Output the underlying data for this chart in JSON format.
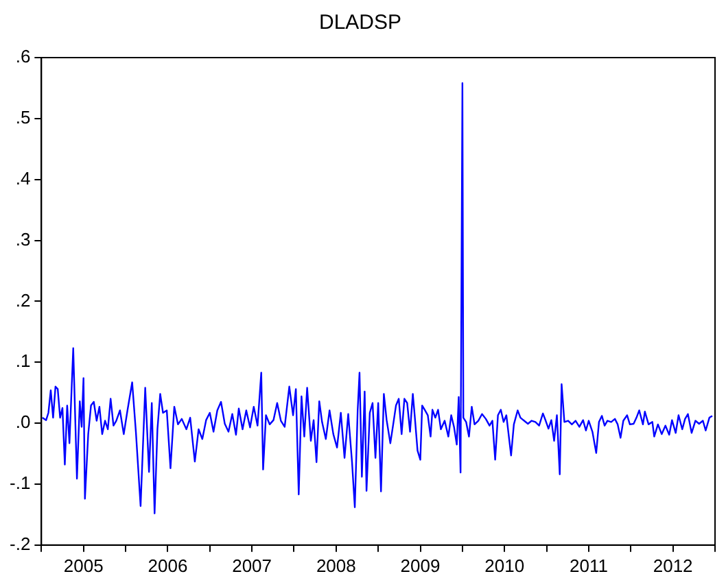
{
  "chart_data": {
    "type": "line",
    "title": "DLADSP",
    "color": "#0000ff",
    "xlim": [
      2005,
      2013
    ],
    "xticks": [
      {
        "value": 2005,
        "label": null
      },
      {
        "value": 2005.5,
        "label": "2005"
      },
      {
        "value": 2006,
        "label": null
      },
      {
        "value": 2006.5,
        "label": "2006"
      },
      {
        "value": 2007,
        "label": null
      },
      {
        "value": 2007.5,
        "label": "2007"
      },
      {
        "value": 2008,
        "label": null
      },
      {
        "value": 2008.5,
        "label": "2008"
      },
      {
        "value": 2009,
        "label": null
      },
      {
        "value": 2009.5,
        "label": "2009"
      },
      {
        "value": 2010,
        "label": null
      },
      {
        "value": 2010.5,
        "label": "2010"
      },
      {
        "value": 2011,
        "label": null
      },
      {
        "value": 2011.5,
        "label": "2011"
      },
      {
        "value": 2012,
        "label": null
      },
      {
        "value": 2012.5,
        "label": "2012"
      },
      {
        "value": 2013,
        "label": null
      }
    ],
    "ylim": [
      -0.2,
      0.6
    ],
    "yticks": [
      {
        "value": -0.2,
        "label": "-.2"
      },
      {
        "value": -0.1,
        "label": "-.1"
      },
      {
        "value": 0,
        "label": ".0"
      },
      {
        "value": 0.1,
        "label": ".1"
      },
      {
        "value": 0.2,
        "label": ".2"
      },
      {
        "value": 0.3,
        "label": ".3"
      },
      {
        "value": 0.4,
        "label": ".4"
      },
      {
        "value": 0.5,
        "label": ".5"
      },
      {
        "value": 0.6,
        "label": ".6"
      }
    ],
    "x": [
      2005.011,
      2005.056,
      2005.083,
      2005.111,
      2005.139,
      2005.167,
      2005.194,
      2005.222,
      2005.25,
      2005.278,
      2005.306,
      2005.333,
      2005.378,
      2005.422,
      2005.456,
      2005.478,
      2005.5,
      2005.517,
      2005.556,
      2005.589,
      2005.622,
      2005.656,
      2005.689,
      2005.722,
      2005.756,
      2005.789,
      2005.822,
      2005.856,
      2005.889,
      2005.933,
      2005.978,
      2006.022,
      2006.078,
      2006.122,
      2006.178,
      2006.233,
      2006.278,
      2006.311,
      2006.344,
      2006.378,
      2006.411,
      2006.444,
      2006.489,
      2006.533,
      2006.578,
      2006.622,
      2006.667,
      2006.722,
      2006.767,
      2006.822,
      2006.867,
      2006.911,
      2006.956,
      2007.0,
      2007.044,
      2007.089,
      2007.133,
      2007.178,
      2007.222,
      2007.267,
      2007.311,
      2007.344,
      2007.389,
      2007.433,
      2007.478,
      2007.522,
      2007.567,
      2007.611,
      2007.633,
      2007.667,
      2007.711,
      2007.756,
      2007.8,
      2007.844,
      2007.889,
      2007.944,
      2007.989,
      2008.022,
      2008.056,
      2008.089,
      2008.122,
      2008.156,
      2008.2,
      2008.233,
      2008.267,
      2008.3,
      2008.333,
      2008.378,
      2008.422,
      2008.467,
      2008.511,
      2008.556,
      2008.6,
      2008.644,
      2008.689,
      2008.722,
      2008.756,
      2008.778,
      2008.806,
      2008.839,
      2008.861,
      2008.9,
      2008.933,
      2008.967,
      2009.0,
      2009.033,
      2009.067,
      2009.1,
      2009.144,
      2009.178,
      2009.211,
      2009.244,
      2009.278,
      2009.311,
      2009.344,
      2009.378,
      2009.411,
      2009.433,
      2009.467,
      2009.5,
      2009.522,
      2009.556,
      2009.589,
      2009.622,
      2009.644,
      2009.678,
      2009.711,
      2009.744,
      2009.789,
      2009.833,
      2009.867,
      2009.9,
      2009.933,
      2009.956,
      2009.978,
      2010.0,
      2010.011,
      2010.044,
      2010.078,
      2010.111,
      2010.144,
      2010.189,
      2010.233,
      2010.278,
      2010.322,
      2010.356,
      2010.389,
      2010.422,
      2010.456,
      2010.489,
      2010.522,
      2010.578,
      2010.611,
      2010.656,
      2010.689,
      2010.733,
      2010.778,
      2010.822,
      2010.867,
      2010.911,
      2010.956,
      2010.989,
      2011.022,
      2011.056,
      2011.089,
      2011.122,
      2011.156,
      2011.178,
      2011.211,
      2011.256,
      2011.3,
      2011.344,
      2011.389,
      2011.433,
      2011.467,
      2011.5,
      2011.544,
      2011.589,
      2011.622,
      2011.656,
      2011.689,
      2011.722,
      2011.767,
      2011.811,
      2011.844,
      2011.878,
      2011.911,
      2011.956,
      2011.989,
      2012.033,
      2012.067,
      2012.1,
      2012.144,
      2012.167,
      2012.211,
      2012.256,
      2012.278,
      2012.322,
      2012.367,
      2012.411,
      2012.456,
      2012.489,
      2012.533,
      2012.567,
      2012.611,
      2012.644,
      2012.678,
      2012.722,
      2012.767,
      2012.811,
      2012.856,
      2012.889,
      2012.933,
      2012.967
    ],
    "values": [
      0.009,
      0.005,
      0.017,
      0.054,
      0.009,
      0.06,
      0.056,
      0.009,
      0.025,
      -0.068,
      0.029,
      -0.033,
      0.123,
      -0.091,
      0.036,
      -0.006,
      0.074,
      -0.124,
      -0.018,
      0.029,
      0.035,
      0.004,
      0.027,
      -0.018,
      0.004,
      -0.01,
      0.04,
      -0.004,
      0.004,
      0.021,
      -0.018,
      0.021,
      0.067,
      -0.014,
      -0.136,
      0.058,
      -0.08,
      0.033,
      -0.148,
      -0.01,
      0.048,
      0.017,
      0.021,
      -0.074,
      0.027,
      -0.002,
      0.007,
      -0.01,
      0.009,
      -0.063,
      -0.01,
      -0.026,
      0.005,
      0.017,
      -0.014,
      0.021,
      0.035,
      -0.001,
      -0.014,
      0.015,
      -0.019,
      0.024,
      -0.01,
      0.021,
      -0.007,
      0.027,
      -0.004,
      0.083,
      -0.076,
      0.013,
      -0.002,
      0.005,
      0.033,
      0.004,
      -0.006,
      0.06,
      0.013,
      0.056,
      -0.117,
      0.044,
      -0.022,
      0.058,
      -0.029,
      0.005,
      -0.064,
      0.036,
      0.002,
      -0.026,
      0.021,
      -0.018,
      -0.04,
      0.017,
      -0.057,
      0.015,
      -0.064,
      -0.138,
      0.021,
      0.083,
      -0.088,
      0.052,
      -0.111,
      0.017,
      0.033,
      -0.057,
      0.033,
      -0.112,
      0.048,
      0.005,
      -0.033,
      -0.002,
      0.029,
      0.04,
      -0.018,
      0.04,
      0.033,
      -0.014,
      0.048,
      0.013,
      -0.045,
      -0.06,
      0.029,
      0.021,
      0.013,
      -0.022,
      0.022,
      0.009,
      0.022,
      -0.01,
      0.004,
      -0.022,
      0.013,
      -0.006,
      -0.035,
      0.043,
      -0.081,
      0.558,
      0.009,
      0.002,
      -0.022,
      0.027,
      -0.002,
      0.004,
      0.015,
      0.007,
      -0.004,
      0.004,
      -0.06,
      0.013,
      0.022,
      0.002,
      0.013,
      -0.053,
      -0.002,
      0.021,
      0.009,
      0.004,
      -0.001,
      0.004,
      0.002,
      -0.004,
      0.016,
      0.004,
      -0.009,
      0.005,
      -0.029,
      0.013,
      -0.084,
      0.064,
      0.002,
      0.004,
      -0.002,
      0.004,
      -0.006,
      0.005,
      -0.012,
      0.004,
      -0.014,
      -0.049,
      0.002,
      0.012,
      -0.004,
      0.004,
      0.002,
      0.007,
      -0.002,
      -0.024,
      0.004,
      0.013,
      -0.002,
      -0.001,
      0.009,
      0.021,
      -0.002,
      0.019,
      -0.002,
      0.002,
      -0.022,
      -0.002,
      -0.018,
      -0.004,
      -0.019,
      0.005,
      -0.016,
      0.013,
      -0.01,
      0.007,
      0.015,
      -0.016,
      0.004,
      -0.001,
      0.004,
      -0.012,
      0.009,
      0.012
    ]
  }
}
